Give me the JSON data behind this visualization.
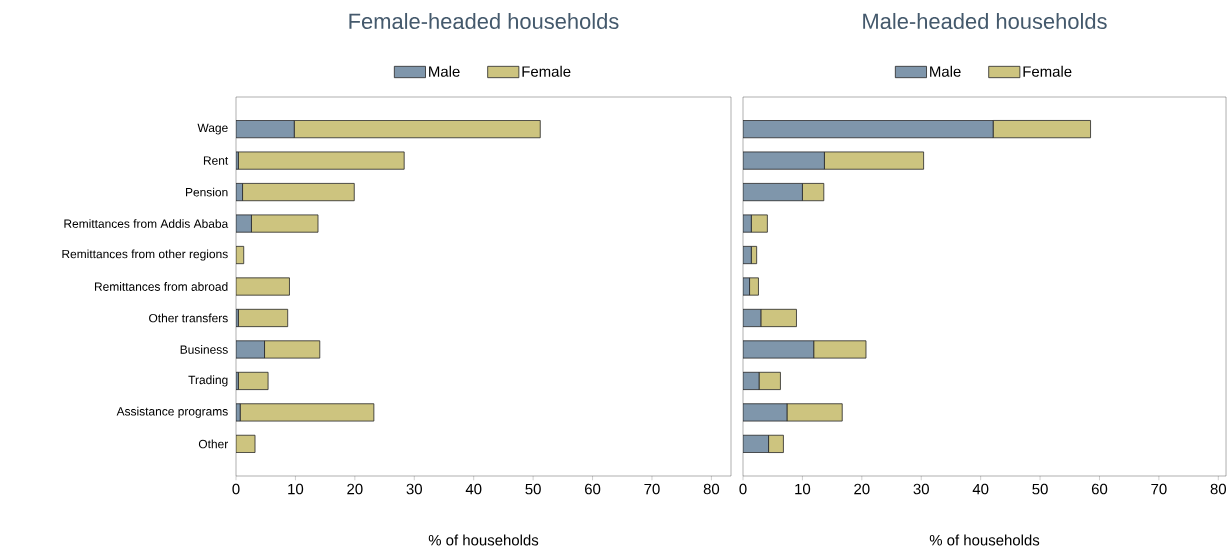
{
  "chart_data": [
    {
      "type": "bar",
      "orientation": "horizontal",
      "stacked": true,
      "title": "Female-headed households",
      "xlabel": "% of households",
      "legend": "top",
      "categories": [
        "Wage",
        "Rent",
        "Pension",
        "Remittances from Addis Ababa",
        "Remittances from other regions",
        "Remittances from abroad",
        "Other transfers",
        "Business",
        "Trading",
        "Assistance programs",
        "Other"
      ],
      "series": [
        {
          "name": "Male",
          "color": "#7f96ab",
          "values": [
            9.8,
            0.4,
            1.1,
            2.6,
            0,
            0,
            0.4,
            4.8,
            0.4,
            0.7,
            0
          ]
        },
        {
          "name": "Female",
          "color": "#cdc47f",
          "values": [
            41.4,
            27.9,
            18.8,
            11.2,
            1.3,
            9.0,
            8.3,
            9.3,
            5.0,
            22.5,
            3.2
          ]
        }
      ],
      "xlim": [
        0,
        83.3
      ],
      "xticks": [
        0,
        10,
        20,
        30,
        40,
        50,
        60,
        70,
        80
      ]
    },
    {
      "type": "bar",
      "orientation": "horizontal",
      "stacked": true,
      "title": "Male-headed households",
      "xlabel": "% of households",
      "legend": "top",
      "tick_labels": "x",
      "categories": [
        null,
        null,
        null,
        null,
        null,
        null,
        null,
        null,
        null,
        null,
        null
      ],
      "series": [
        {
          "name": "Male",
          "color": "#7f96ab",
          "values": [
            42.1,
            13.7,
            10.0,
            1.4,
            1.4,
            1.1,
            3.0,
            11.9,
            2.7,
            7.4,
            4.3
          ]
        },
        {
          "name": "Female",
          "color": "#cdc47f",
          "values": [
            16.4,
            16.7,
            3.6,
            2.7,
            0.9,
            1.5,
            6.0,
            8.8,
            3.6,
            9.3,
            2.5
          ]
        }
      ],
      "xlim": [
        0,
        81.3
      ],
      "xticks": [
        0,
        10,
        20,
        30,
        40,
        50,
        60,
        70,
        80
      ]
    }
  ]
}
